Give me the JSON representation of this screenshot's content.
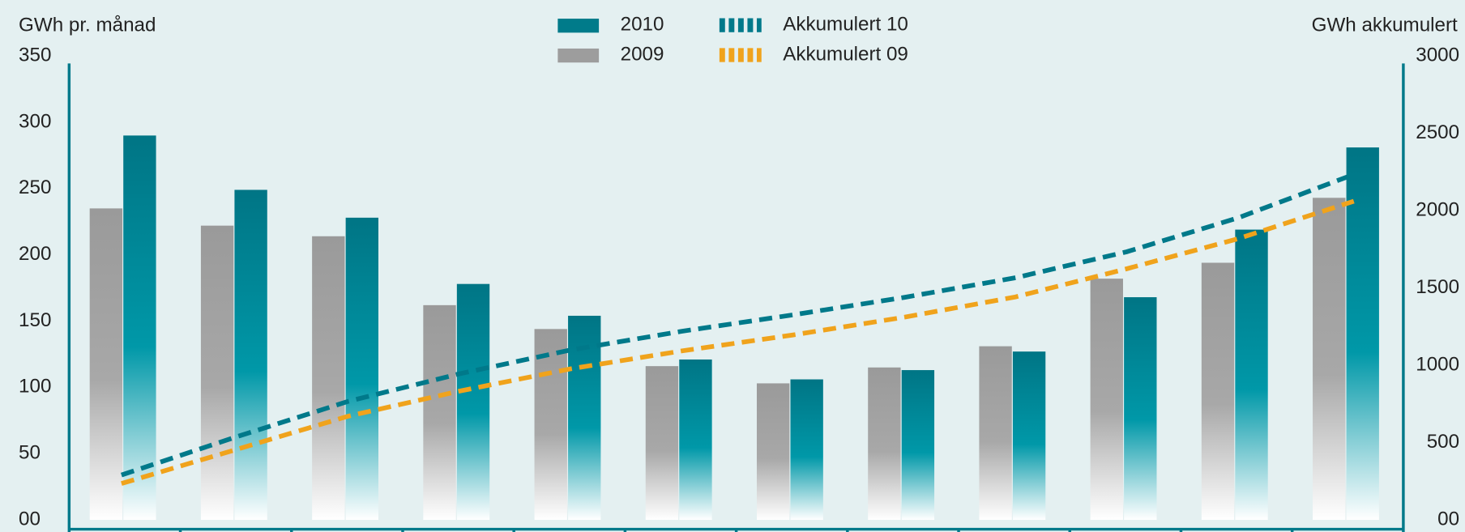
{
  "chart_data": {
    "type": "bar",
    "y_label": "GWh pr. månad",
    "y2_label": "GWh akkumulert",
    "categories": [
      null,
      null,
      null,
      null,
      null,
      null,
      null,
      null,
      null,
      null,
      null,
      null
    ],
    "series": [
      {
        "name": "2010",
        "color": "#007b8a",
        "type": "bar",
        "values": [
          290,
          249,
          228,
          178,
          154,
          121,
          106,
          113,
          127,
          168,
          219,
          281
        ]
      },
      {
        "name": "2009",
        "color": "#9d9d9d",
        "type": "bar",
        "values": [
          235,
          222,
          214,
          162,
          144,
          116,
          103,
          115,
          131,
          182,
          194,
          243
        ]
      },
      {
        "name": "Akkumulert 10",
        "color": "#00798a",
        "type": "line",
        "dashed": true,
        "axis": "y2",
        "values": [
          290,
          539,
          767,
          945,
          1099,
          1220,
          1326,
          1439,
          1566,
          1734,
          1953,
          2234
        ]
      },
      {
        "name": "Akkumulert 09",
        "color": "#f0a31c",
        "type": "line",
        "dashed": true,
        "axis": "y2",
        "values": [
          235,
          457,
          671,
          833,
          977,
          1093,
          1196,
          1311,
          1442,
          1624,
          1818,
          2061
        ]
      }
    ],
    "ylim": [
      0,
      350
    ],
    "yticks": [
      {
        "value": 0,
        "label": "00"
      },
      50,
      100,
      150,
      200,
      250,
      300,
      350
    ],
    "y2lim": [
      0,
      3000
    ],
    "y2ticks": [
      {
        "value": 0,
        "label": "00"
      },
      500,
      1000,
      1500,
      2000,
      2500,
      3000
    ],
    "grid": false,
    "legend": "top"
  }
}
